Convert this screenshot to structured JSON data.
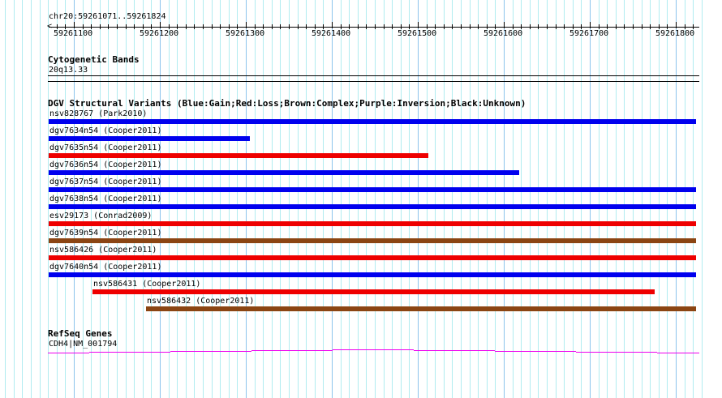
{
  "ruler": {
    "location": "chr20:59261071..59261824",
    "start": 59261071,
    "end": 59261824,
    "tick_labels": [
      "59261100",
      "59261200",
      "59261300",
      "59261400",
      "59261500",
      "59261600",
      "59261700",
      "59261800"
    ]
  },
  "cytoband": {
    "title": "Cytogenetic Bands",
    "band": "20q13.33"
  },
  "dgv": {
    "title": "DGV Structural Variants (Blue:Gain;Red:Loss;Brown:Complex;Purple:Inversion;Black:Unknown)",
    "colors": {
      "gain": "#0000ee",
      "loss": "#ee0000",
      "complex": "#8b4513"
    },
    "variants": [
      {
        "label": "nsv828767 (Park2010)",
        "type": "gain",
        "start": 59261071,
        "end": 59261824
      },
      {
        "label": "dgv7634n54 (Cooper2011)",
        "type": "gain",
        "start": 59261071,
        "end": 59261305
      },
      {
        "label": "dgv7635n54 (Cooper2011)",
        "type": "loss",
        "start": 59261071,
        "end": 59261512
      },
      {
        "label": "dgv7636n54 (Cooper2011)",
        "type": "gain",
        "start": 59261071,
        "end": 59261618
      },
      {
        "label": "dgv7637n54 (Cooper2011)",
        "type": "gain",
        "start": 59261071,
        "end": 59261824
      },
      {
        "label": "dgv7638n54 (Cooper2011)",
        "type": "gain",
        "start": 59261071,
        "end": 59261824
      },
      {
        "label": "esv29173 (Conrad2009)",
        "type": "loss",
        "start": 59261071,
        "end": 59261824
      },
      {
        "label": "dgv7639n54 (Cooper2011)",
        "type": "complex",
        "start": 59261071,
        "end": 59261824
      },
      {
        "label": "nsv586426 (Cooper2011)",
        "type": "loss",
        "start": 59261071,
        "end": 59261824
      },
      {
        "label": "dgv7640n54 (Cooper2011)",
        "type": "gain",
        "start": 59261071,
        "end": 59261824
      },
      {
        "label": "nsv586431 (Cooper2011)",
        "type": "loss",
        "start": 59261122,
        "end": 59261775
      },
      {
        "label": "nsv586432 (Cooper2011)",
        "type": "complex",
        "start": 59261184,
        "end": 59261824
      }
    ]
  },
  "refseq": {
    "title": "RefSeq Genes",
    "gene": "CDH4|NM_001794",
    "color": "#ee00ee"
  }
}
